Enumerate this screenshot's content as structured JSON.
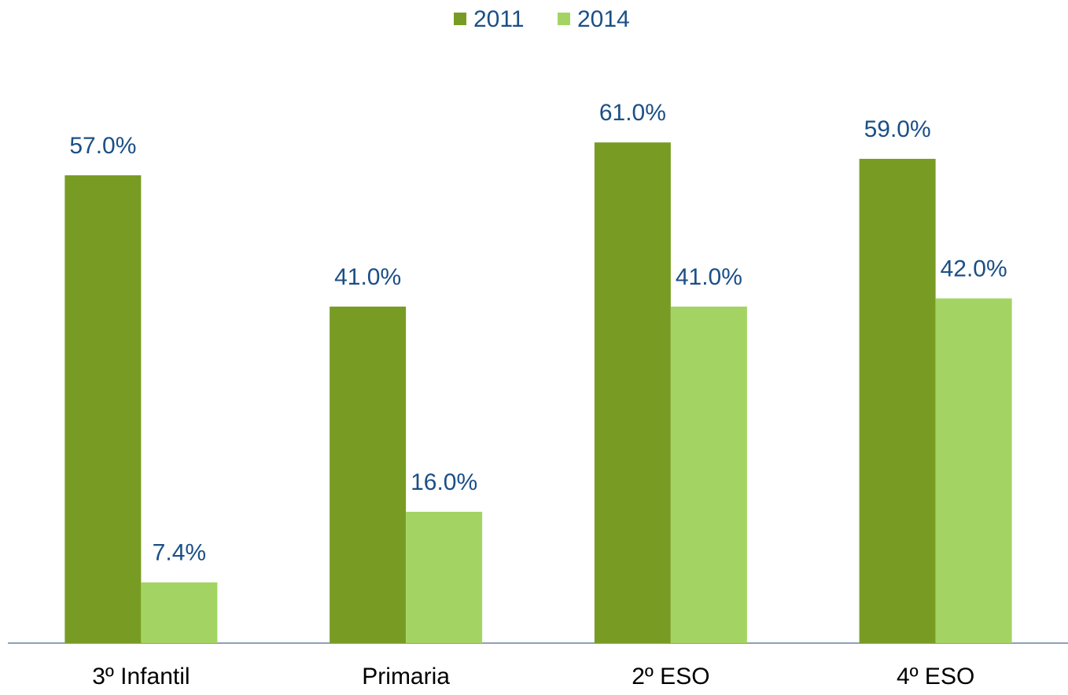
{
  "chart_data": {
    "type": "bar",
    "categories": [
      "3º Infantil",
      "Primaria",
      "2º ESO",
      "4º ESO"
    ],
    "series": [
      {
        "name": "2011",
        "color": "#789c23",
        "values": [
          57,
          41,
          61,
          59
        ],
        "value_labels": [
          "57.0%",
          "41.0%",
          "61.0%",
          "59.0%"
        ]
      },
      {
        "name": "2014",
        "color": "#a3d463",
        "values": [
          7.4,
          16,
          41,
          42
        ],
        "value_labels": [
          "7.4%",
          "16.0%",
          "41.0%",
          "42.0%"
        ]
      }
    ],
    "legend": "top"
  }
}
